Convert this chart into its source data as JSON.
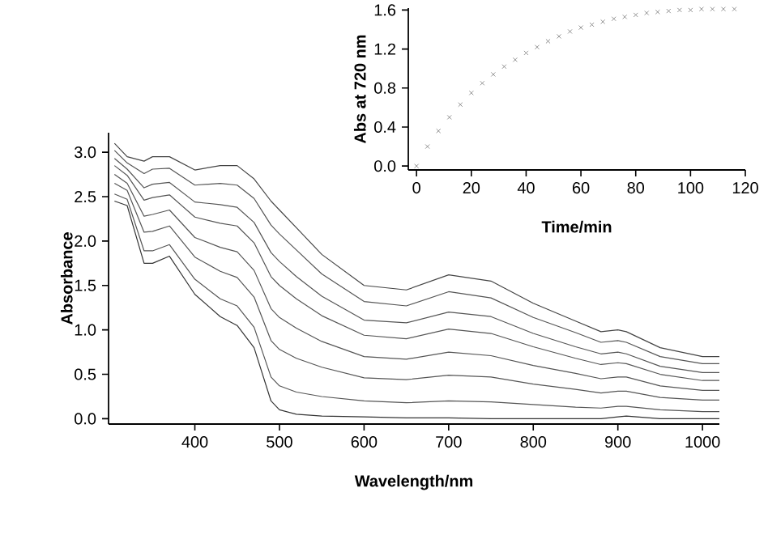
{
  "chart_data": [
    {
      "type": "line",
      "xlabel": "Wavelength/nm",
      "ylabel": "Absorbance",
      "xlim": [
        298,
        1020
      ],
      "ylim": [
        -0.06,
        3.22
      ],
      "xticks": [
        400,
        500,
        600,
        700,
        800,
        900,
        1000
      ],
      "yticks": [
        {
          "value": 0,
          "label": "0.0"
        },
        {
          "value": 0.5,
          "label": "0.5"
        },
        {
          "value": 1,
          "label": "1.0"
        },
        {
          "value": 1.5,
          "label": "1.5"
        },
        {
          "value": 2,
          "label": "2.0"
        },
        {
          "value": 2.5,
          "label": "2.5"
        },
        {
          "value": 3,
          "label": "3.0"
        }
      ],
      "marker": "none",
      "line_style": "solid",
      "x": [
        305,
        320,
        340,
        350,
        370,
        400,
        430,
        450,
        470,
        490,
        500,
        520,
        550,
        600,
        650,
        700,
        750,
        800,
        850,
        880,
        900,
        910,
        950,
        1000,
        1020
      ],
      "series": [
        {
          "color": "#333333",
          "values": [
            2.45,
            2.4,
            1.75,
            1.75,
            1.83,
            1.4,
            1.15,
            1.05,
            0.8,
            0.2,
            0.1,
            0.05,
            0.03,
            0.02,
            0.01,
            0.01,
            0,
            0,
            0,
            0,
            0.02,
            0.03,
            0,
            0,
            0
          ]
        },
        {
          "color": "#555555",
          "values": [
            2.53,
            2.47,
            1.89,
            1.89,
            1.96,
            1.57,
            1.35,
            1.27,
            1.03,
            0.47,
            0.37,
            0.3,
            0.25,
            0.2,
            0.18,
            0.2,
            0.19,
            0.16,
            0.13,
            0.12,
            0.14,
            0.14,
            0.1,
            0.08,
            0.08
          ]
        },
        {
          "color": "#555555",
          "values": [
            2.65,
            2.57,
            2.1,
            2.11,
            2.17,
            1.82,
            1.66,
            1.59,
            1.37,
            0.88,
            0.78,
            0.68,
            0.58,
            0.46,
            0.44,
            0.49,
            0.47,
            0.39,
            0.33,
            0.29,
            0.31,
            0.31,
            0.24,
            0.21,
            0.21
          ]
        },
        {
          "color": "#555555",
          "values": [
            2.75,
            2.65,
            2.28,
            2.3,
            2.35,
            2.04,
            1.93,
            1.88,
            1.67,
            1.24,
            1.14,
            1.02,
            0.87,
            0.7,
            0.67,
            0.75,
            0.71,
            0.6,
            0.51,
            0.45,
            0.47,
            0.47,
            0.37,
            0.32,
            0.32
          ]
        },
        {
          "color": "#555555",
          "values": [
            2.85,
            2.74,
            2.46,
            2.49,
            2.52,
            2.27,
            2.2,
            2.17,
            1.98,
            1.6,
            1.5,
            1.35,
            1.16,
            0.94,
            0.9,
            1.01,
            0.96,
            0.81,
            0.68,
            0.61,
            0.63,
            0.62,
            0.5,
            0.43,
            0.43
          ]
        },
        {
          "color": "#555555",
          "values": [
            2.93,
            2.81,
            2.6,
            2.64,
            2.66,
            2.44,
            2.41,
            2.38,
            2.21,
            1.87,
            1.77,
            1.6,
            1.38,
            1.11,
            1.08,
            1.2,
            1.15,
            0.96,
            0.81,
            0.73,
            0.75,
            0.73,
            0.59,
            0.52,
            0.52
          ]
        },
        {
          "color": "#555555",
          "values": [
            3.02,
            2.88,
            2.76,
            2.81,
            2.82,
            2.63,
            2.65,
            2.63,
            2.48,
            2.18,
            2.08,
            1.9,
            1.63,
            1.32,
            1.27,
            1.43,
            1.36,
            1.14,
            0.97,
            0.86,
            0.88,
            0.86,
            0.7,
            0.62,
            0.62
          ]
        },
        {
          "color": "#444444",
          "values": [
            3.1,
            2.95,
            2.9,
            2.95,
            2.95,
            2.8,
            2.85,
            2.85,
            2.7,
            2.45,
            2.35,
            2.15,
            1.85,
            1.5,
            1.45,
            1.62,
            1.55,
            1.3,
            1.1,
            0.98,
            1.0,
            0.98,
            0.8,
            0.7,
            0.7
          ]
        }
      ]
    },
    {
      "type": "scatter",
      "xlabel": "Time/min",
      "ylabel": "Abs at 720 nm",
      "xlim": [
        -3,
        120
      ],
      "ylim": [
        -0.04,
        1.62
      ],
      "xticks": [
        0,
        20,
        40,
        60,
        80,
        100,
        120
      ],
      "yticks": [
        {
          "value": 0,
          "label": "0.0"
        },
        {
          "value": 0.4,
          "label": "0.4"
        },
        {
          "value": 0.8,
          "label": "0.8"
        },
        {
          "value": 1.2,
          "label": "1.2"
        },
        {
          "value": 1.6,
          "label": "1.6"
        }
      ],
      "marker": "cross",
      "x": [
        0,
        4,
        8,
        12,
        16,
        20,
        24,
        28,
        32,
        36,
        40,
        44,
        48,
        52,
        56,
        60,
        64,
        68,
        72,
        76,
        80,
        84,
        88,
        92,
        96,
        100,
        104,
        108,
        112,
        116
      ],
      "series": [
        {
          "color": "#777777",
          "values": [
            0.0,
            0.2,
            0.36,
            0.5,
            0.63,
            0.75,
            0.85,
            0.94,
            1.02,
            1.09,
            1.16,
            1.22,
            1.28,
            1.33,
            1.38,
            1.42,
            1.45,
            1.48,
            1.51,
            1.53,
            1.55,
            1.57,
            1.58,
            1.59,
            1.6,
            1.6,
            1.61,
            1.61,
            1.61,
            1.61
          ]
        }
      ]
    }
  ]
}
